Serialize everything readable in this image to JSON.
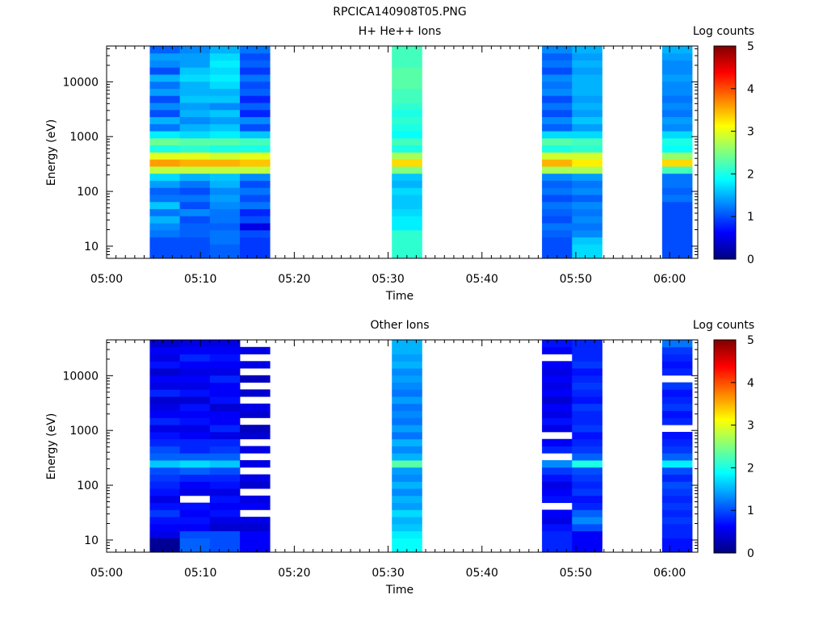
{
  "figure": {
    "title": "RPCICA140908T05.PNG"
  },
  "colormap": {
    "stops": [
      {
        "v": 0.0,
        "color": "#000080"
      },
      {
        "v": 0.125,
        "color": "#0000ff"
      },
      {
        "v": 0.375,
        "color": "#00ffff"
      },
      {
        "v": 0.625,
        "color": "#ffff00"
      },
      {
        "v": 0.875,
        "color": "#ff0000"
      },
      {
        "v": 1.0,
        "color": "#800000"
      }
    ]
  },
  "chart_data": [
    {
      "type": "heatmap",
      "title": "H+ He++ Ions",
      "xlabel": "Time",
      "ylabel": "Energy (eV)",
      "colorbar_label": "Log counts",
      "colorbar_range": [
        0,
        5
      ],
      "colorbar_ticks": [
        "0",
        "1",
        "2",
        "3",
        "4",
        "5"
      ],
      "x_ticks": [
        "05:00",
        "05:10",
        "05:20",
        "05:30",
        "05:40",
        "05:50",
        "06:00"
      ],
      "y_ticks": [
        "10",
        "100",
        "1000",
        "10000"
      ],
      "y_scale": "log",
      "ylim": [
        6,
        45000
      ],
      "xlim": [
        "05:00",
        "06:03"
      ],
      "columns": [
        {
          "start": "05:04.6",
          "end": "05:07.8",
          "profile": [
            1.0,
            1.0,
            1.0,
            1.2,
            1.3,
            1.5,
            1.2,
            1.6,
            1.2,
            1.1,
            1.4,
            1.7,
            2.8,
            3.6,
            3.0,
            2.0,
            2.4,
            1.8,
            1.2,
            1.5,
            1.0,
            1.3,
            1.0,
            1.4,
            1.2,
            1.5,
            1.0,
            1.3,
            1.4,
            1.1
          ]
        },
        {
          "start": "05:07.8",
          "end": "05:11.0",
          "profile": [
            1.0,
            1.0,
            1.0,
            1.1,
            1.1,
            1.0,
            1.3,
            1.0,
            1.2,
            1.0,
            1.2,
            1.5,
            2.8,
            3.5,
            3.0,
            2.1,
            2.3,
            1.7,
            1.5,
            1.3,
            1.5,
            1.4,
            1.6,
            1.5,
            1.5,
            1.7,
            1.6,
            1.4,
            1.4,
            1.3
          ]
        },
        {
          "start": "05:11.0",
          "end": "05:14.2",
          "profile": [
            1.1,
            1.1,
            1.2,
            1.2,
            1.1,
            1.2,
            1.2,
            1.3,
            1.4,
            1.3,
            1.5,
            1.6,
            2.8,
            3.5,
            2.9,
            2.0,
            2.3,
            1.8,
            1.6,
            1.4,
            1.6,
            1.3,
            1.6,
            1.5,
            1.7,
            1.8,
            1.7,
            1.8,
            1.7,
            1.5
          ]
        },
        {
          "start": "05:14.2",
          "end": "05:17.4",
          "profile": [
            0.9,
            0.9,
            0.9,
            1.0,
            0.5,
            1.0,
            0.8,
            1.2,
            1.0,
            1.2,
            1.0,
            1.3,
            2.8,
            3.4,
            3.0,
            2.0,
            2.2,
            1.6,
            1.0,
            1.3,
            0.8,
            1.1,
            0.8,
            1.1,
            1.0,
            1.2,
            0.9,
            1.1,
            1.0,
            1.2
          ]
        },
        {
          "start": "05:30.4",
          "end": "05:33.6",
          "profile": [
            2.1,
            2.1,
            2.1,
            2.1,
            1.8,
            1.8,
            1.7,
            1.6,
            1.6,
            1.7,
            1.5,
            1.6,
            2.5,
            3.3,
            2.7,
            2.0,
            2.2,
            1.9,
            2.0,
            2.1,
            2.0,
            2.1,
            2.2,
            2.2,
            2.3,
            2.3,
            2.3,
            2.2,
            2.2,
            2.2
          ]
        },
        {
          "start": "05:46.4",
          "end": "05:49.6",
          "profile": [
            1.0,
            1.0,
            1.0,
            1.1,
            1.2,
            1.0,
            1.1,
            1.2,
            1.0,
            1.2,
            1.1,
            1.3,
            2.7,
            3.5,
            2.9,
            2.0,
            2.3,
            1.7,
            1.1,
            1.3,
            1.0,
            1.2,
            1.0,
            1.3,
            1.2,
            1.3,
            1.0,
            1.2,
            1.1,
            1.3
          ]
        },
        {
          "start": "05:49.6",
          "end": "05:52.8",
          "profile": [
            1.7,
            1.7,
            1.6,
            1.3,
            1.2,
            1.3,
            1.2,
            1.3,
            1.1,
            1.3,
            1.2,
            1.4,
            2.7,
            3.2,
            2.9,
            2.1,
            2.2,
            1.7,
            1.4,
            1.6,
            1.4,
            1.5,
            1.4,
            1.5,
            1.5,
            1.5,
            1.4,
            1.5,
            1.4,
            1.5
          ]
        },
        {
          "start": "05:59.2",
          "end": "06:02.4",
          "profile": [
            1.0,
            1.0,
            1.0,
            1.0,
            1.0,
            1.0,
            1.0,
            1.0,
            1.2,
            1.1,
            1.2,
            1.2,
            2.2,
            3.3,
            2.6,
            1.9,
            2.0,
            1.7,
            1.3,
            1.4,
            1.2,
            1.3,
            1.2,
            1.3,
            1.3,
            1.4,
            1.3,
            1.3,
            1.4,
            1.5
          ]
        }
      ]
    },
    {
      "type": "heatmap",
      "title": "Other Ions",
      "xlabel": "Time",
      "ylabel": "Energy (eV)",
      "colorbar_label": "Log counts",
      "colorbar_range": [
        0,
        5
      ],
      "colorbar_ticks": [
        "0",
        "1",
        "2",
        "3",
        "4",
        "5"
      ],
      "x_ticks": [
        "05:00",
        "05:10",
        "05:20",
        "05:30",
        "05:40",
        "05:50",
        "06:00"
      ],
      "y_ticks": [
        "10",
        "100",
        "1000",
        "10000"
      ],
      "y_scale": "log",
      "ylim": [
        6,
        45000
      ],
      "xlim": [
        "05:00",
        "06:03"
      ],
      "columns": [
        {
          "start": "05:04.6",
          "end": "05:07.8",
          "profile": [
            0.1,
            0.1,
            0.5,
            0.6,
            0.7,
            0.9,
            0.7,
            0.5,
            0.7,
            0.8,
            0.9,
            1.0,
            1.6,
            1.1,
            1.0,
            0.8,
            0.7,
            0.5,
            0.8,
            0.6,
            0.5,
            0.4,
            0.8,
            0.5,
            0.6,
            0.4,
            0.7,
            0.5,
            0.6,
            0.4
          ]
        },
        {
          "start": "05:07.8",
          "end": "05:11.0",
          "profile": [
            1.1,
            1.1,
            1.0,
            0.6,
            0.7,
            0.6,
            0.7,
            null,
            0.5,
            0.6,
            0.8,
            1.1,
            1.7,
            1.1,
            0.8,
            0.8,
            0.6,
            0.5,
            0.7,
            0.6,
            0.7,
            0.4,
            0.7,
            0.5,
            0.6,
            0.5,
            0.6,
            0.8,
            0.6,
            0.5
          ]
        },
        {
          "start": "05:11.0",
          "end": "05:14.2",
          "profile": [
            1.0,
            1.0,
            1.0,
            0.4,
            0.5,
            0.7,
            0.6,
            0.7,
            0.5,
            0.7,
            0.8,
            1.0,
            1.6,
            1.1,
            0.9,
            0.8,
            0.5,
            0.8,
            0.6,
            0.6,
            0.4,
            0.7,
            0.6,
            0.6,
            0.8,
            0.5,
            0.6,
            0.7,
            0.6,
            0.5
          ]
        },
        {
          "start": "05:14.2",
          "end": "05:17.4",
          "profile": [
            0.6,
            0.6,
            0.6,
            0.4,
            0.5,
            null,
            0.6,
            0.5,
            null,
            0.4,
            0.5,
            null,
            0.5,
            null,
            0.5,
            null,
            0.4,
            0.3,
            null,
            0.4,
            0.5,
            null,
            0.4,
            null,
            0.3,
            null,
            0.5,
            null,
            0.5,
            null
          ]
        },
        {
          "start": "05:30.4",
          "end": "05:33.6",
          "profile": [
            1.9,
            1.9,
            1.8,
            1.6,
            1.5,
            1.7,
            1.4,
            1.5,
            1.3,
            1.5,
            1.3,
            1.4,
            2.3,
            1.5,
            1.3,
            1.5,
            1.2,
            1.4,
            1.2,
            1.3,
            1.2,
            1.4,
            1.2,
            1.3,
            1.4,
            1.3,
            1.5,
            1.4,
            1.5,
            1.5
          ]
        },
        {
          "start": "05:46.4",
          "end": "05:49.6",
          "profile": [
            0.8,
            0.8,
            0.8,
            0.7,
            0.5,
            0.6,
            null,
            0.7,
            0.6,
            0.5,
            0.7,
            0.9,
            1.3,
            null,
            0.8,
            0.6,
            null,
            0.5,
            0.7,
            0.5,
            0.6,
            0.4,
            0.6,
            0.5,
            0.6,
            0.5,
            0.6,
            null,
            0.6,
            0.7
          ]
        },
        {
          "start": "05:49.6",
          "end": "05:52.8",
          "profile": [
            0.6,
            0.6,
            0.6,
            1.0,
            1.3,
            1.1,
            0.8,
            0.7,
            0.9,
            0.8,
            0.9,
            1.0,
            2.0,
            1.1,
            0.9,
            0.8,
            0.7,
            0.9,
            0.8,
            0.8,
            0.9,
            0.7,
            0.8,
            0.9,
            0.8,
            0.7,
            0.9,
            0.8,
            0.8,
            0.8
          ]
        },
        {
          "start": "05:59.2",
          "end": "06:02.4",
          "profile": [
            0.7,
            0.7,
            0.8,
            0.8,
            0.9,
            0.8,
            0.9,
            0.8,
            0.9,
            1.0,
            0.8,
            1.0,
            1.8,
            1.1,
            0.9,
            0.8,
            0.7,
            null,
            0.8,
            0.7,
            0.9,
            0.8,
            0.7,
            0.9,
            null,
            0.8,
            0.7,
            0.8,
            0.9,
            1.2
          ]
        }
      ]
    }
  ]
}
